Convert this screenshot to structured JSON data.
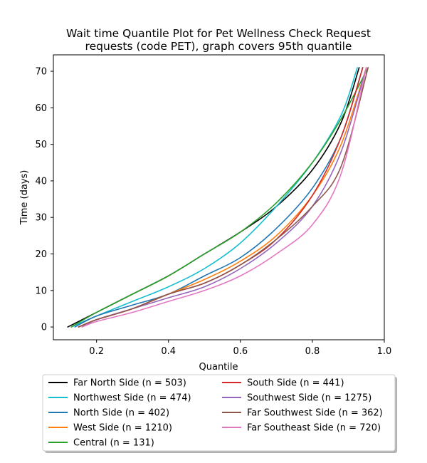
{
  "chart_data": {
    "type": "line",
    "title_line1": "Wait time Quantile Plot for Pet Wellness Check Request",
    "title_line2": "requests (code PET), graph covers 95th quantile",
    "xlabel": "Quantile",
    "ylabel": "Time (days)",
    "xlim": [
      0.08,
      1.0
    ],
    "ylim": [
      -3.5,
      74.5
    ],
    "xticks": [
      0.2,
      0.4,
      0.6,
      0.8,
      1.0
    ],
    "xtick_labels": [
      "0.2",
      "0.4",
      "0.6",
      "0.8",
      "1.0"
    ],
    "yticks": [
      0,
      10,
      20,
      30,
      40,
      50,
      60,
      70
    ],
    "ytick_labels": [
      "0",
      "10",
      "20",
      "30",
      "40",
      "50",
      "60",
      "70"
    ],
    "grid": false,
    "legend_placement": "bottom-center",
    "series": [
      {
        "name": "Far North Side (n = 503)",
        "color": "#000000",
        "x": [
          0.12,
          0.2,
          0.3,
          0.4,
          0.5,
          0.6,
          0.7,
          0.8,
          0.88,
          0.93
        ],
        "y": [
          0,
          4,
          9,
          14,
          20,
          26,
          33,
          43,
          56,
          71
        ]
      },
      {
        "name": "Northwest Side (n = 474)",
        "color": "#17becf",
        "x": [
          0.13,
          0.2,
          0.3,
          0.4,
          0.5,
          0.6,
          0.7,
          0.8,
          0.88,
          0.925
        ],
        "y": [
          0,
          3,
          7,
          11,
          16,
          23,
          33,
          45,
          58,
          71
        ]
      },
      {
        "name": "North Side (n = 402)",
        "color": "#1f77b4",
        "x": [
          0.14,
          0.2,
          0.3,
          0.4,
          0.5,
          0.6,
          0.7,
          0.8,
          0.88,
          0.94
        ],
        "y": [
          0,
          3,
          6,
          9,
          14,
          19,
          27,
          38,
          52,
          71
        ]
      },
      {
        "name": "West Side (n = 1210)",
        "color": "#ff7f0e",
        "x": [
          0.15,
          0.2,
          0.3,
          0.4,
          0.5,
          0.6,
          0.7,
          0.8,
          0.88,
          0.95
        ],
        "y": [
          0,
          2,
          5,
          9,
          13,
          18,
          25,
          36,
          50,
          71
        ]
      },
      {
        "name": "Central (n = 131)",
        "color": "#2ca02c",
        "x": [
          0.13,
          0.2,
          0.3,
          0.4,
          0.5,
          0.6,
          0.7,
          0.8,
          0.88,
          0.955
        ],
        "y": [
          0,
          4,
          9,
          14,
          20,
          26,
          34,
          45,
          57,
          71
        ]
      },
      {
        "name": "South Side (n = 441)",
        "color": "#d62728",
        "x": [
          0.15,
          0.2,
          0.3,
          0.4,
          0.5,
          0.6,
          0.7,
          0.8,
          0.88,
          0.94
        ],
        "y": [
          0,
          2,
          5,
          9,
          12,
          17,
          24,
          36,
          52,
          71
        ]
      },
      {
        "name": "Southwest Side (n = 1275)",
        "color": "#9467bd",
        "x": [
          0.16,
          0.2,
          0.3,
          0.4,
          0.5,
          0.6,
          0.7,
          0.8,
          0.88,
          0.95
        ],
        "y": [
          0,
          2,
          5,
          8,
          11,
          16,
          23,
          33,
          48,
          71
        ]
      },
      {
        "name": "Far Southwest Side (n = 362)",
        "color": "#8c564b",
        "x": [
          0.15,
          0.2,
          0.3,
          0.4,
          0.5,
          0.6,
          0.7,
          0.8,
          0.88,
          0.955
        ],
        "y": [
          0,
          2,
          5,
          9,
          12,
          17,
          24,
          33,
          44,
          71
        ]
      },
      {
        "name": "Far Southeast Side (n = 720)",
        "color": "#e377c2",
        "x": [
          0.16,
          0.2,
          0.3,
          0.4,
          0.5,
          0.6,
          0.7,
          0.8,
          0.88,
          0.95
        ],
        "y": [
          0,
          1.5,
          4,
          7,
          10,
          14,
          20,
          28,
          42,
          71
        ]
      }
    ]
  }
}
